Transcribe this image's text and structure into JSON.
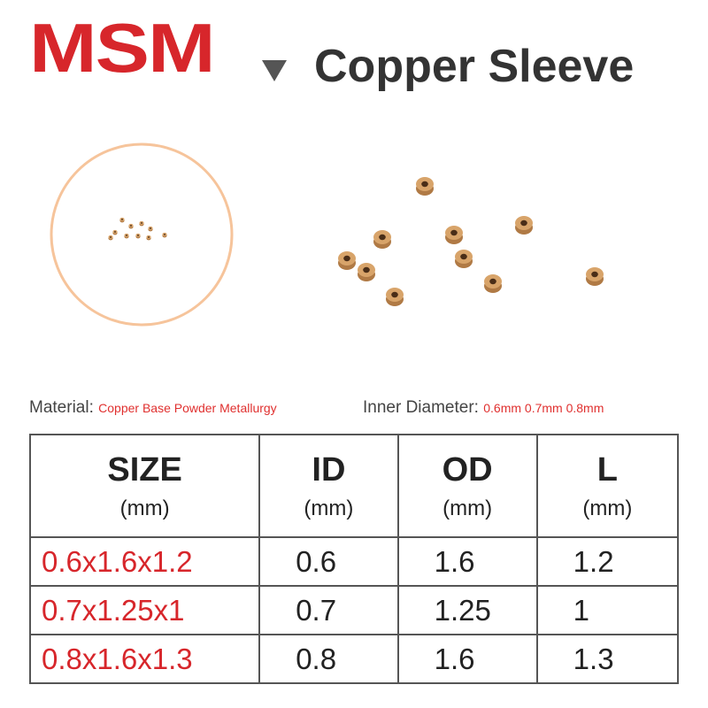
{
  "header": {
    "brand": "MSM",
    "title": "Copper Sleeve"
  },
  "specs": {
    "material": {
      "label": "Material:",
      "value": "Copper Base Powder Metallurgy"
    },
    "inner_diameter": {
      "label": "Inner Diameter:",
      "value": "0.6mm 0.7mm 0.8mm"
    }
  },
  "table": {
    "columns": [
      {
        "name": "SIZE",
        "unit": "(mm)"
      },
      {
        "name": "ID",
        "unit": "(mm)"
      },
      {
        "name": "OD",
        "unit": "(mm)"
      },
      {
        "name": "L",
        "unit": "(mm)"
      }
    ],
    "rows": [
      [
        "0.6x1.6x1.2",
        "0.6",
        "1.6",
        "1.2"
      ],
      [
        "0.7x1.25x1",
        "0.7",
        "1.25",
        "1"
      ],
      [
        "0.8x1.6x1.3",
        "0.8",
        "1.6",
        "1.3"
      ]
    ]
  }
}
